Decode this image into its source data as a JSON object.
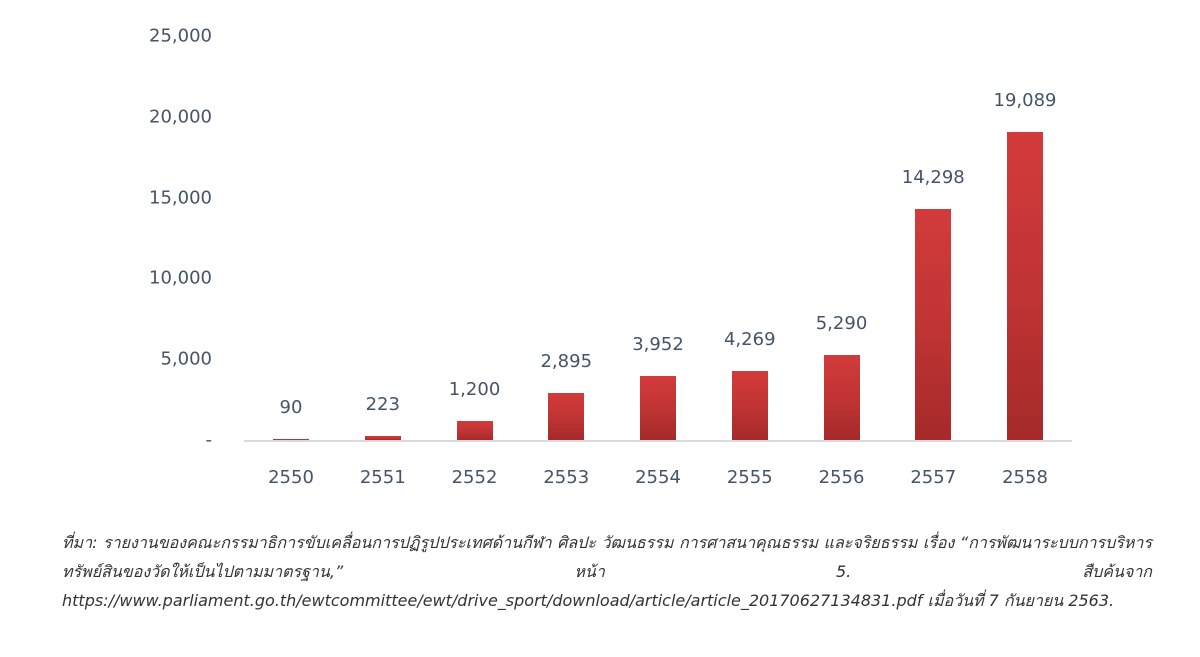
{
  "chart_data": {
    "type": "bar",
    "title": "",
    "xlabel": "",
    "ylabel": "",
    "categories": [
      "2550",
      "2551",
      "2552",
      "2553",
      "2554",
      "2555",
      "2556",
      "2557",
      "2558"
    ],
    "values": [
      90,
      223,
      1200,
      2895,
      3952,
      4269,
      5290,
      14298,
      19089
    ],
    "value_labels": [
      "90",
      "223",
      "1,200",
      "2,895",
      "3,952",
      "4,269",
      "5,290",
      "14,298",
      "19,089"
    ],
    "ylim": [
      0,
      25000
    ],
    "yticks": [
      0,
      5000,
      10000,
      15000,
      20000,
      25000
    ],
    "ytick_labels": [
      "-",
      "5,000",
      "10,000",
      "15,000",
      "20,000",
      "25,000"
    ],
    "grid": false,
    "legend": null,
    "bar_color": "#c13434",
    "text_color": "#44546a"
  },
  "source": {
    "text": "ที่มา: รายงานของคณะกรรมาธิการขับเคลื่อนการปฏิรูปประเทศด้านกีฬา ศิลปะ วัฒนธรรม การศาสนาคุณธรรม และจริยธรรม เรื่อง “การพัฒนาระบบการบริหารทรัพย์สินของวัดให้เป็นไปตามมาตรฐาน,” หน้า 5. สืบค้นจาก https://www.parliament.go.th/ewtcommittee/ewt/drive_sport/download/article/article_20170627134831.pdf เมื่อวันที่ 7 กันยายน 2563."
  }
}
